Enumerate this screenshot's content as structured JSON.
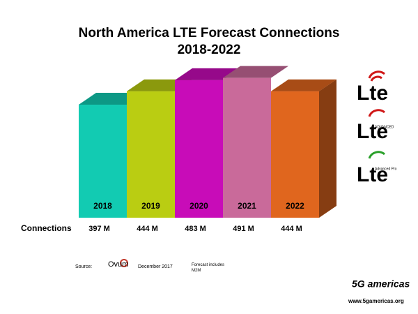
{
  "chart_data": {
    "type": "bar3d",
    "title": "North America LTE Forecast Connections",
    "subtitle": "2018-2022",
    "categories": [
      "2018",
      "2019",
      "2020",
      "2021",
      "2022"
    ],
    "values": [
      397,
      444,
      483,
      491,
      444
    ],
    "value_labels": [
      "397 M",
      "444 M",
      "483 M",
      "491 M",
      "444 M"
    ],
    "colors": [
      "#12cbb2",
      "#bacd12",
      "#c80cb8",
      "#c96a9a",
      "#e0661e"
    ],
    "row_label": "Connections"
  },
  "source": {
    "label": "Source:",
    "name": "Ovum",
    "date": "December 2017",
    "note": "Forecast includes M2M"
  },
  "logos": {
    "lte": "Lte",
    "advanced": "ADVANCED",
    "advanced_pro": "Advanced Pro",
    "brand": "5G americas",
    "website": "www.5gamericas.org"
  }
}
